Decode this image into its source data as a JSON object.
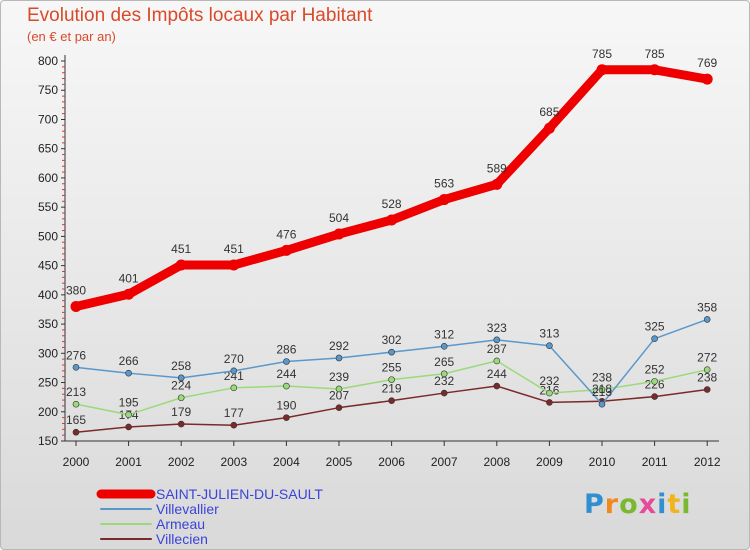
{
  "title": "Evolution des Impôts locaux par Habitant",
  "subtitle": "(en € et par an)",
  "logo": {
    "letters": [
      "P",
      "r",
      "o",
      "x",
      "i",
      "t",
      "i"
    ],
    "colors": [
      "#2f8fd0",
      "#f08a1c",
      "#7ab82f",
      "#e84a9a",
      "#2f8fd0",
      "#f0b41c",
      "#7ab82f"
    ]
  },
  "chart_data": {
    "type": "line",
    "title": "Evolution des Impôts locaux par Habitant",
    "subtitle": "(en € et par an)",
    "x": [
      "2000",
      "2001",
      "2002",
      "2003",
      "2004",
      "2005",
      "2006",
      "2007",
      "2008",
      "2009",
      "2010",
      "2011",
      "2012"
    ],
    "ylim": [
      150,
      800
    ],
    "yticks": [
      "150",
      "200",
      "250",
      "300",
      "350",
      "400",
      "450",
      "500",
      "550",
      "600",
      "650",
      "700",
      "750",
      "800"
    ],
    "grid": false,
    "legend_position": "bottom-left",
    "series": [
      {
        "name": "SAINT-JULIEN-DU-SAULT",
        "color": "#ee0000",
        "legend_color": "#3a44d8",
        "values": [
          380,
          401,
          451,
          451,
          476,
          504,
          528,
          563,
          589,
          685,
          785,
          785,
          769
        ]
      },
      {
        "name": "Villevallier",
        "color": "#5a98cc",
        "legend_color": "#3a44d8",
        "values": [
          276,
          266,
          258,
          270,
          286,
          292,
          302,
          312,
          323,
          313,
          213,
          325,
          358
        ]
      },
      {
        "name": "Armeau",
        "color": "#9ada7a",
        "legend_color": "#3a44d8",
        "values": [
          213,
          195,
          224,
          241,
          244,
          239,
          255,
          265,
          287,
          232,
          238,
          252,
          272
        ]
      },
      {
        "name": "Villecien",
        "color": "#7a2a2a",
        "legend_color": "#3a44d8",
        "values": [
          165,
          174,
          179,
          177,
          190,
          207,
          219,
          232,
          244,
          216,
          218,
          226,
          238
        ]
      }
    ]
  }
}
